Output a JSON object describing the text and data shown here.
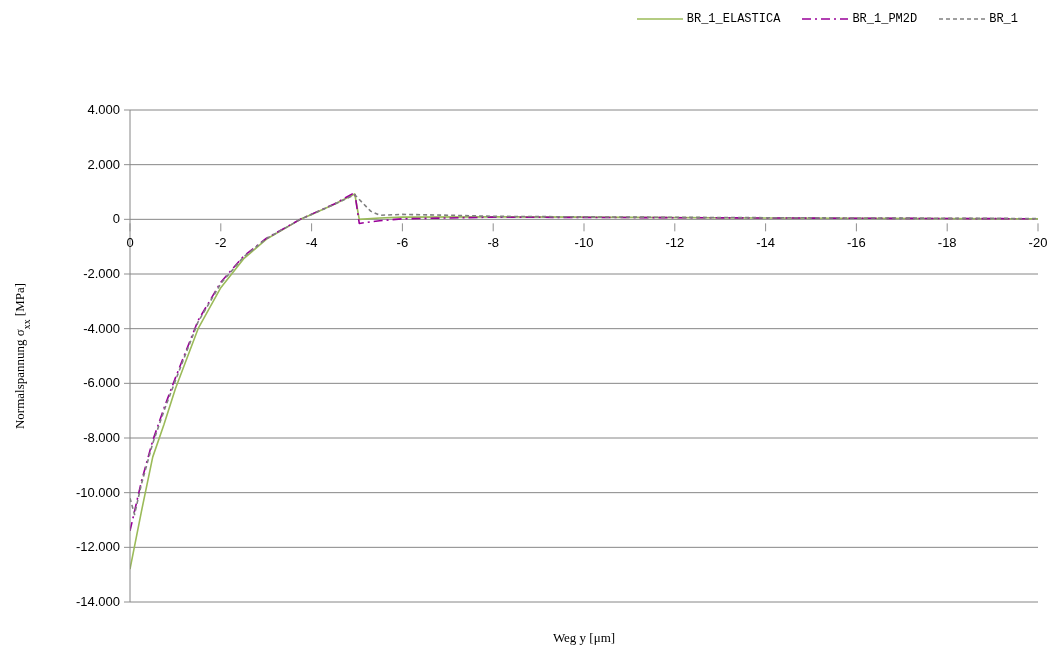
{
  "chart_data": {
    "type": "line",
    "xlabel": "Weg y [μm]",
    "ylabel": "Normalspannung σ$_{xx}$ [MPa]",
    "xlim": [
      0,
      -20
    ],
    "xticks": [
      0,
      -2,
      -4,
      -6,
      -8,
      -10,
      -12,
      -14,
      -16,
      -18,
      -20
    ],
    "ylim": [
      -14000,
      4000
    ],
    "yticks": [
      {
        "value": -14000,
        "label": "-14.000"
      },
      {
        "value": -12000,
        "label": "-12.000"
      },
      {
        "value": -10000,
        "label": "-10.000"
      },
      {
        "value": -8000,
        "label": "-8.000"
      },
      {
        "value": -6000,
        "label": "-6.000"
      },
      {
        "value": -4000,
        "label": "-4.000"
      },
      {
        "value": -2000,
        "label": "-2.000"
      },
      0,
      {
        "value": 2000,
        "label": "2.000"
      },
      {
        "value": 4000,
        "label": "4.000"
      }
    ],
    "grid": "y",
    "legend": "top right",
    "marker": "none",
    "series": [
      {
        "name": "BR_1_ELASTICA",
        "color": "#9bbb59",
        "line_style": "solid",
        "x": [
          0,
          -0.25,
          -0.5,
          -0.75,
          -1,
          -1.5,
          -2,
          -2.5,
          -3,
          -3.5,
          -3.75,
          -4,
          -4.5,
          -4.95,
          -5.05,
          -5.5,
          -6,
          -8,
          -10,
          -14,
          -20
        ],
        "values": [
          -12800,
          -10700,
          -8700,
          -7500,
          -6200,
          -4000,
          -2500,
          -1450,
          -730,
          -250,
          0,
          180,
          550,
          930,
          0,
          50,
          80,
          90,
          80,
          50,
          20
        ]
      },
      {
        "name": "BR_1_PM2D",
        "color": "#990099",
        "line_style": "dashdot",
        "x": [
          0,
          -0.25,
          -0.5,
          -0.75,
          -1,
          -1.5,
          -2,
          -2.5,
          -3,
          -3.5,
          -3.75,
          -4,
          -4.5,
          -4.95,
          -5.05,
          -5.5,
          -6,
          -8,
          -10,
          -14,
          -20
        ],
        "values": [
          -11400,
          -9600,
          -8100,
          -6900,
          -5800,
          -3700,
          -2300,
          -1350,
          -700,
          -230,
          0,
          190,
          560,
          980,
          -150,
          -50,
          20,
          80,
          70,
          50,
          20
        ]
      },
      {
        "name": "BR_1",
        "color": "#808080",
        "line_style": "dashed",
        "x": [
          0,
          -0.1,
          -0.25,
          -0.5,
          -0.75,
          -1,
          -1.5,
          -2,
          -2.5,
          -3,
          -3.5,
          -3.75,
          -4,
          -4.5,
          -4.95,
          -5.3,
          -5.5,
          -6,
          -7,
          -8,
          -10,
          -14,
          -20
        ],
        "values": [
          -10200,
          -10800,
          -9700,
          -8200,
          -7000,
          -5900,
          -3750,
          -2350,
          -1380,
          -710,
          -240,
          0,
          180,
          550,
          900,
          300,
          150,
          180,
          150,
          110,
          90,
          60,
          30
        ]
      }
    ]
  }
}
